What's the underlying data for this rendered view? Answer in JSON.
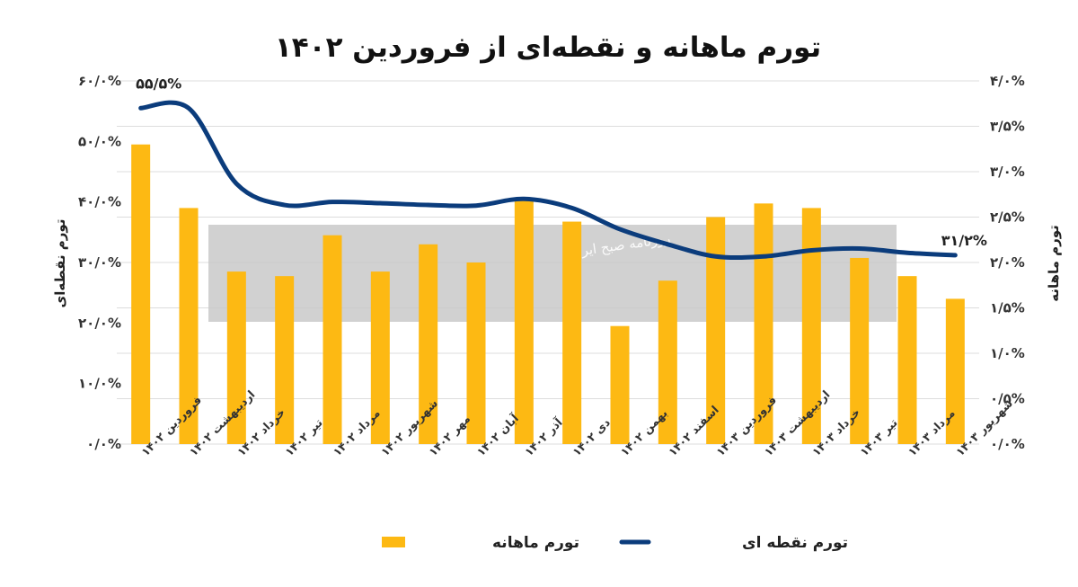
{
  "chart_data": {
    "type": "bar+line",
    "title": "تورم ماهانه و نقطه‌ای از فروردین ۱۴۰۲",
    "categories": [
      "فروردین ۱۴۰۲",
      "اردیبهشت ۱۴۰۲",
      "خرداد ۱۴۰۲",
      "تیر ۱۴۰۲",
      "مرداد ۱۴۰۲",
      "شهریور ۱۴۰۲",
      "مهر ۱۴۰۲",
      "آبان ۱۴۰۲",
      "آذر ۱۴۰۲",
      "دی ۱۴۰۲",
      "بهمن ۱۴۰۲",
      "اسفند ۱۴۰۲",
      "فروردین ۱۴۰۳",
      "اردیبهشت ۱۴۰۳",
      "خرداد ۱۴۰۳",
      "تیر ۱۴۰۳",
      "مرداد ۱۴۰۳",
      "شهریور ۱۴۰۳"
    ],
    "series": [
      {
        "name": "تورم ماهانه",
        "type": "bar",
        "axis": "right",
        "color": "#FDB913",
        "values": [
          3.3,
          2.6,
          1.9,
          1.85,
          2.3,
          1.9,
          2.2,
          2.0,
          2.7,
          2.45,
          1.3,
          1.8,
          2.5,
          2.65,
          2.6,
          2.05,
          1.85,
          1.6
        ]
      },
      {
        "name": "تورم نقطه ای",
        "type": "line",
        "axis": "left",
        "color": "#0B3C7C",
        "values": [
          55.5,
          55.5,
          43.0,
          39.5,
          40.0,
          39.8,
          39.5,
          39.4,
          40.5,
          39.0,
          35.5,
          33.0,
          31.0,
          31.0,
          32.0,
          32.3,
          31.6,
          31.2
        ]
      }
    ],
    "y_left": {
      "label": "تورم نقطه‌ای",
      "ylim": [
        0,
        60
      ],
      "ticks": [
        "۰/۰%",
        "۱۰/۰%",
        "۲۰/۰%",
        "۳۰/۰%",
        "۴۰/۰%",
        "۵۰/۰%",
        "۶۰/۰%"
      ]
    },
    "y_right": {
      "label": "تورم ماهانه",
      "ylim": [
        0,
        4
      ],
      "ticks": [
        "۰/۰%",
        "۰/۵%",
        "۱/۰%",
        "۱/۵%",
        "۲/۰%",
        "۲/۵%",
        "۳/۰%",
        "۳/۵%",
        "۴/۰%"
      ]
    },
    "annotations": [
      {
        "text": "۵۵/۵%",
        "series": 1,
        "index": 0
      },
      {
        "text": "۳۱/۲%",
        "series": 1,
        "index": 17
      }
    ],
    "grid": true,
    "legend": "bottom"
  },
  "watermark": {
    "caption": "روزنامه صبح ایران"
  },
  "colors": {
    "bar": "#FDB913",
    "line": "#0B3C7C",
    "grid": "#DDDDDD"
  }
}
